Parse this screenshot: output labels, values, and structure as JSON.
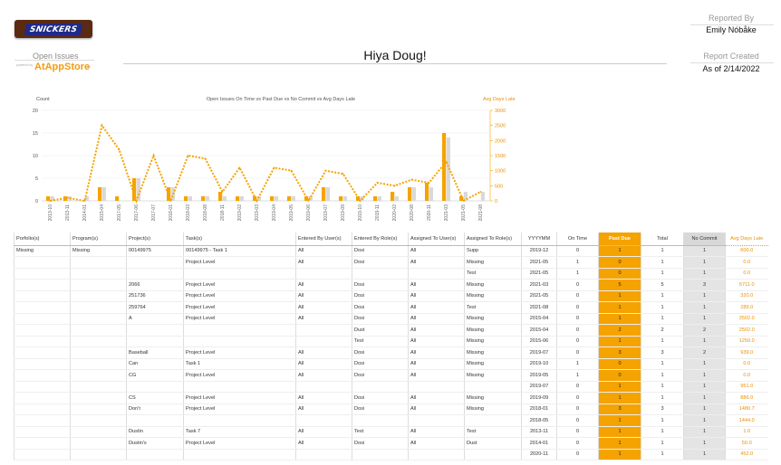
{
  "header": {
    "logo_text": "SNICKERS",
    "title": "Open Issues",
    "powered_by": "powered by",
    "brand": "AtAppStore",
    "brand_suffix": "ltd",
    "greeting": "Hiya Doug!",
    "reported_by_label": "Reported By",
    "reported_by": "Emily Nóbåke",
    "report_created_label": "Report Created",
    "report_created": "As of 2/14/2022"
  },
  "colors": {
    "accent": "#f5a300",
    "gray_bar": "#d9d9d9",
    "avg_text": "#e8900a"
  },
  "chart_data": {
    "type": "bar",
    "title": "Open Issues On Time vs Past Due vs No Commit vs Avg Days Late",
    "ylabel": "Count",
    "y2label": "Avg Days Late",
    "ylim": [
      0,
      20
    ],
    "y2lim": [
      0,
      3000
    ],
    "yticks": [
      0,
      5,
      10,
      15,
      20
    ],
    "y2ticks": [
      0,
      500,
      1000,
      1500,
      2000,
      2500,
      3000
    ],
    "categories": [
      "2013-10",
      "2013-11",
      "2014-01",
      "2015-04",
      "2017-05",
      "2017-06",
      "2017-07",
      "2018-01",
      "2018-03",
      "2018-08",
      "2018-11",
      "2019-02",
      "2019-03",
      "2019-04",
      "2019-05",
      "2019-06",
      "2019-07",
      "2019-09",
      "2019-10",
      "2019-11",
      "2020-02",
      "2020-08",
      "2020-11",
      "2021-03",
      "2021-05",
      "2021-08"
    ],
    "series": [
      {
        "name": "Past Due",
        "type": "bar",
        "axis": "left",
        "values": [
          1,
          1,
          0,
          3,
          1,
          5,
          0,
          3,
          1,
          1,
          2,
          1,
          1,
          1,
          1,
          1,
          3,
          1,
          1,
          1,
          2,
          3,
          4,
          15,
          1,
          0
        ]
      },
      {
        "name": "No Commit",
        "type": "bar",
        "axis": "left",
        "values": [
          1,
          1,
          1,
          3,
          0,
          5,
          0,
          3,
          1,
          1,
          1,
          1,
          1,
          1,
          1,
          1,
          3,
          1,
          1,
          1,
          1,
          3,
          3,
          14,
          2,
          2
        ]
      },
      {
        "name": "Avg Days Late",
        "type": "line",
        "axis": "right",
        "values": [
          0,
          100,
          0,
          2500,
          1700,
          0,
          1500,
          0,
          1500,
          1400,
          300,
          1100,
          0,
          1100,
          1000,
          0,
          1000,
          900,
          0,
          600,
          500,
          700,
          600,
          1300,
          0,
          300
        ]
      }
    ]
  },
  "table": {
    "columns": [
      "Porfolio(s)",
      "Program(s)",
      "Project(s)",
      "Task(s)",
      "Entered By User(s)",
      "Entered By Role(s)",
      "Assigned To User(s)",
      "Assigned To Role(s)",
      "YYYYMM",
      "On Time",
      "Past Due",
      "Total",
      "No Commit",
      "Avg Days Late"
    ],
    "rows": [
      [
        "Missing",
        "Missing",
        "00149975",
        "00149975 - Task 1",
        "All",
        "Dosi",
        "All",
        "Supp",
        "2019-12",
        "0",
        "1",
        "1",
        "1",
        "600.0"
      ],
      [
        "",
        "",
        "",
        "Project Level",
        "All",
        "Dosi",
        "All",
        "Missing",
        "2021-05",
        "1",
        "0",
        "1",
        "1",
        "0.0"
      ],
      [
        "",
        "",
        "",
        "",
        "",
        "",
        "",
        "Test",
        "2021-05",
        "1",
        "0",
        "1",
        "1",
        "0.0"
      ],
      [
        "",
        "",
        "2066",
        "Project Level",
        "All",
        "Dosi",
        "All",
        "Missing",
        "2021-03",
        "0",
        "5",
        "5",
        "3",
        "5711.0"
      ],
      [
        "",
        "",
        "251736",
        "Project Level",
        "All",
        "Dosi",
        "All",
        "Missing",
        "2021-05",
        "0",
        "1",
        "1",
        "1",
        "320.0"
      ],
      [
        "",
        "",
        "259764",
        "Project Level",
        "All",
        "Dosi",
        "All",
        "Test",
        "2021-08",
        "0",
        "1",
        "1",
        "1",
        "289.0"
      ],
      [
        "",
        "",
        "A",
        "Project Level",
        "All",
        "Dosi",
        "All",
        "Missing",
        "2015-04",
        "0",
        "1",
        "1",
        "1",
        "2502.0"
      ],
      [
        "",
        "",
        "",
        "",
        "",
        "Dust",
        "All",
        "Missing",
        "2015-04",
        "0",
        "2",
        "2",
        "2",
        "2502.0"
      ],
      [
        "",
        "",
        "",
        "",
        "",
        "Test",
        "All",
        "Missing",
        "2015-06",
        "0",
        "1",
        "1",
        "1",
        "1250.0"
      ],
      [
        "",
        "",
        "Baseball",
        "Project Level",
        "All",
        "Dosi",
        "All",
        "Missing",
        "2019-07",
        "0",
        "3",
        "3",
        "2",
        "939.0"
      ],
      [
        "",
        "",
        "Can",
        "Task 1",
        "All",
        "Dosi",
        "All",
        "Missing",
        "2019-10",
        "1",
        "0",
        "1",
        "1",
        "0.0"
      ],
      [
        "",
        "",
        "CG",
        "Project Level",
        "All",
        "Dosi",
        "All",
        "Missing",
        "2019-05",
        "1",
        "0",
        "1",
        "1",
        "0.0"
      ],
      [
        "",
        "",
        "",
        "",
        "",
        "",
        "",
        "",
        "2019-07",
        "0",
        "1",
        "1",
        "1",
        "951.0"
      ],
      [
        "",
        "",
        "CS",
        "Project Level",
        "All",
        "Dosi",
        "All",
        "Missing",
        "2019-09",
        "0",
        "1",
        "1",
        "1",
        "886.0"
      ],
      [
        "",
        "",
        "Don't",
        "Project Level",
        "All",
        "Dosi",
        "All",
        "Missing",
        "2018-01",
        "0",
        "3",
        "3",
        "1",
        "1480.7"
      ],
      [
        "",
        "",
        "",
        "",
        "",
        "",
        "",
        "",
        "2018-05",
        "0",
        "1",
        "1",
        "1",
        "1444.0"
      ],
      [
        "",
        "",
        "Dustin",
        "Task 7",
        "All",
        "Test",
        "All",
        "Test",
        "2013-11",
        "0",
        "1",
        "1",
        "1",
        "1.0"
      ],
      [
        "",
        "",
        "Dustin's",
        "Project Level",
        "All",
        "Dosi",
        "All",
        "Dust",
        "2014-01",
        "0",
        "1",
        "1",
        "1",
        "50.0"
      ],
      [
        "",
        "",
        "",
        "",
        "",
        "",
        "",
        "",
        "2020-11",
        "0",
        "1",
        "1",
        "1",
        "452.0"
      ]
    ]
  }
}
